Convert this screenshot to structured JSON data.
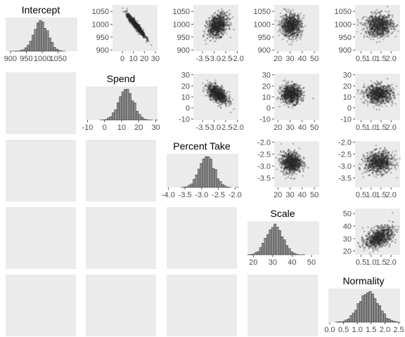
{
  "figure": {
    "variables": [
      "Intercept",
      "Spend",
      "Percent Take",
      "Scale",
      "Normality"
    ]
  },
  "colors": {
    "panel_bg": "#ebebeb",
    "hist_fill": "#8c8c8c",
    "hist_stroke": "#1a1a1a",
    "point": "#262626",
    "tick_text": "#4d4d4d"
  },
  "chart_data": {
    "type": "pairs",
    "description_of_layout": "upper-triangle scatter, diagonal histogram, lower-triangle blank",
    "variables": [
      {
        "name": "Intercept",
        "mean": 995,
        "sd": 22,
        "hist_xlim": [
          885,
          1110
        ],
        "hist_ticks": [
          900,
          950,
          1000,
          1050
        ],
        "axis_lim": [
          895,
          1075
        ],
        "axis_ticks": [
          900,
          950,
          1000,
          1050
        ]
      },
      {
        "name": "Spend",
        "mean": 12.5,
        "sd": 4.2,
        "hist_xlim": [
          -11,
          31
        ],
        "hist_ticks": [
          -10,
          0,
          10,
          20,
          30
        ],
        "axis_lim": [
          -9,
          32
        ],
        "axis_ticks": [
          0,
          10,
          20,
          30
        ],
        "axis_lim_y": [
          -11,
          31
        ],
        "axis_ticks_y": [
          -10,
          0,
          10,
          20,
          30
        ]
      },
      {
        "name": "Percent Take",
        "mean": -2.85,
        "sd": 0.22,
        "hist_xlim": [
          -4.05,
          -1.9
        ],
        "hist_ticks": [
          -4.0,
          -3.5,
          -3.0,
          -2.5,
          -2.0
        ],
        "hist_tick_labels": [
          "-4.0",
          "-3.5",
          "-3.0",
          "-2.5",
          "-2.0"
        ],
        "axis_lim": [
          -3.9,
          -1.95
        ],
        "axis_ticks": [
          -3.5,
          -3.0,
          -2.5,
          -2.0
        ],
        "axis_tick_labels": [
          "-3.5",
          "-3.0",
          "-2.5",
          "-2.0"
        ],
        "axis_ticks_top_row": [
          -3.5,
          -3.0,
          -2.5,
          -2.0
        ],
        "axis_tick_labels_top_row": [
          "-3.5",
          "-3.0",
          "-2.5",
          "-2.0"
        ],
        "axis_ticks_y": [
          -3.5,
          -3.0,
          -2.5,
          -2.0
        ],
        "axis_tick_labels_y": [
          "-3.5",
          "-3.0",
          "-2.5",
          "-2.0"
        ]
      },
      {
        "name": "Scale",
        "mean": 31,
        "sd": 4.2,
        "hist_xlim": [
          17,
          54
        ],
        "hist_ticks": [
          20,
          30,
          40,
          50
        ],
        "axis_lim": [
          17,
          54
        ],
        "axis_ticks": [
          20,
          30,
          40,
          50
        ],
        "axis_lim_y": [
          17,
          54
        ],
        "axis_ticks_y": [
          20,
          30,
          40,
          50
        ]
      },
      {
        "name": "Normality",
        "mean": 1.4,
        "sd": 0.35,
        "hist_xlim": [
          -0.05,
          2.55
        ],
        "hist_ticks": [
          0.0,
          0.5,
          1.0,
          1.5,
          2.0,
          2.5
        ],
        "hist_tick_labels": [
          "0.0",
          "0.5",
          "1.0",
          "1.5",
          "2.0",
          "2.5"
        ],
        "axis_lim": [
          0.2,
          2.45
        ],
        "axis_ticks": [
          0.5,
          1.0,
          1.5,
          2.0
        ],
        "axis_tick_labels": [
          "0.5",
          "1.0",
          "1.5",
          "2.0"
        ]
      }
    ],
    "correlations": {
      "Intercept|Spend": -0.95,
      "Intercept|Percent Take": 0.3,
      "Intercept|Scale": 0.0,
      "Intercept|Normality": 0.05,
      "Spend|Percent Take": -0.55,
      "Spend|Scale": 0.0,
      "Spend|Normality": 0.0,
      "Percent Take|Scale": 0.0,
      "Percent Take|Normality": 0.05,
      "Scale|Normality": 0.45
    },
    "n_points_per_scatter": 900,
    "hist_bins": 30
  }
}
